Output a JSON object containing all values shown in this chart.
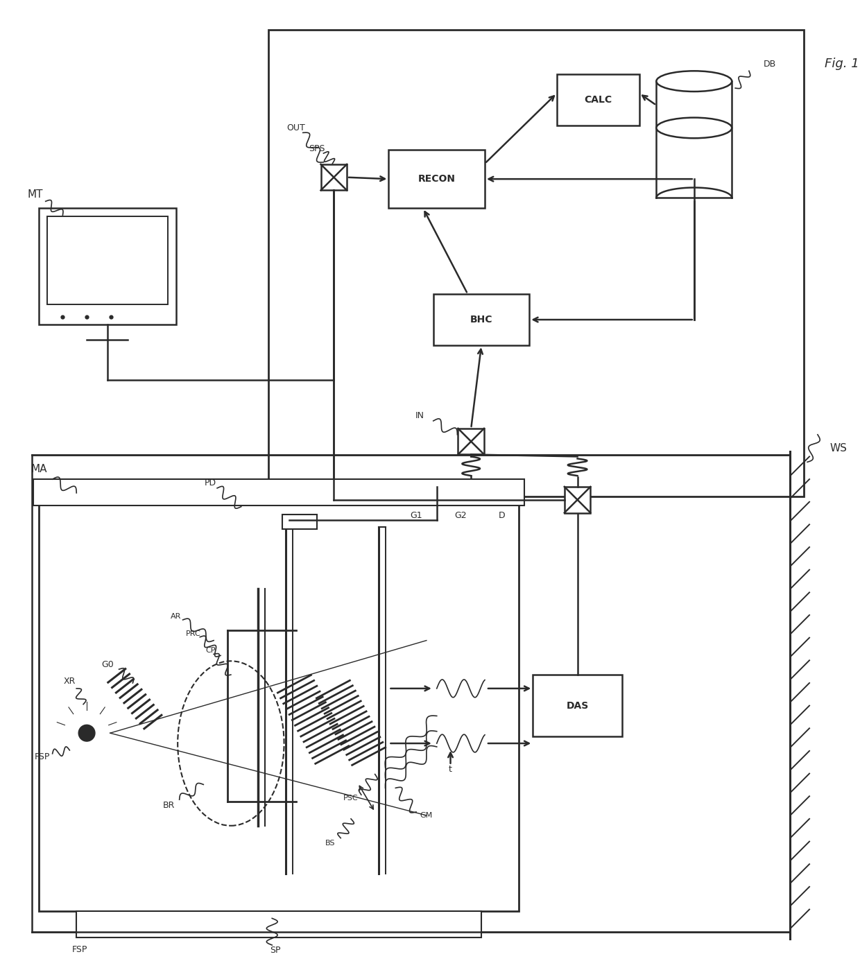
{
  "fig_width": 12.4,
  "fig_height": 13.96,
  "bg_color": "#ffffff",
  "line_color": "#2a2a2a",
  "labels": {
    "fig": "Fig. 1",
    "ws": "WS",
    "mt": "MT",
    "ma": "MA",
    "xr": "XR",
    "fsp": "FSP",
    "pd": "PD",
    "g0": "G0",
    "g1": "G1",
    "g2": "G2",
    "d": "D",
    "br": "BR",
    "ar": "AR",
    "prc": "PRC",
    "cp": "CP",
    "bs": "BS",
    "psc": "PSC",
    "gm": "GM",
    "t": "t",
    "sp": "SP",
    "in": "IN",
    "out": "OUT",
    "sps": "SPS",
    "recon": "RECON",
    "bhc": "BHC",
    "calc": "CALC",
    "db": "DB",
    "das": "DAS"
  }
}
